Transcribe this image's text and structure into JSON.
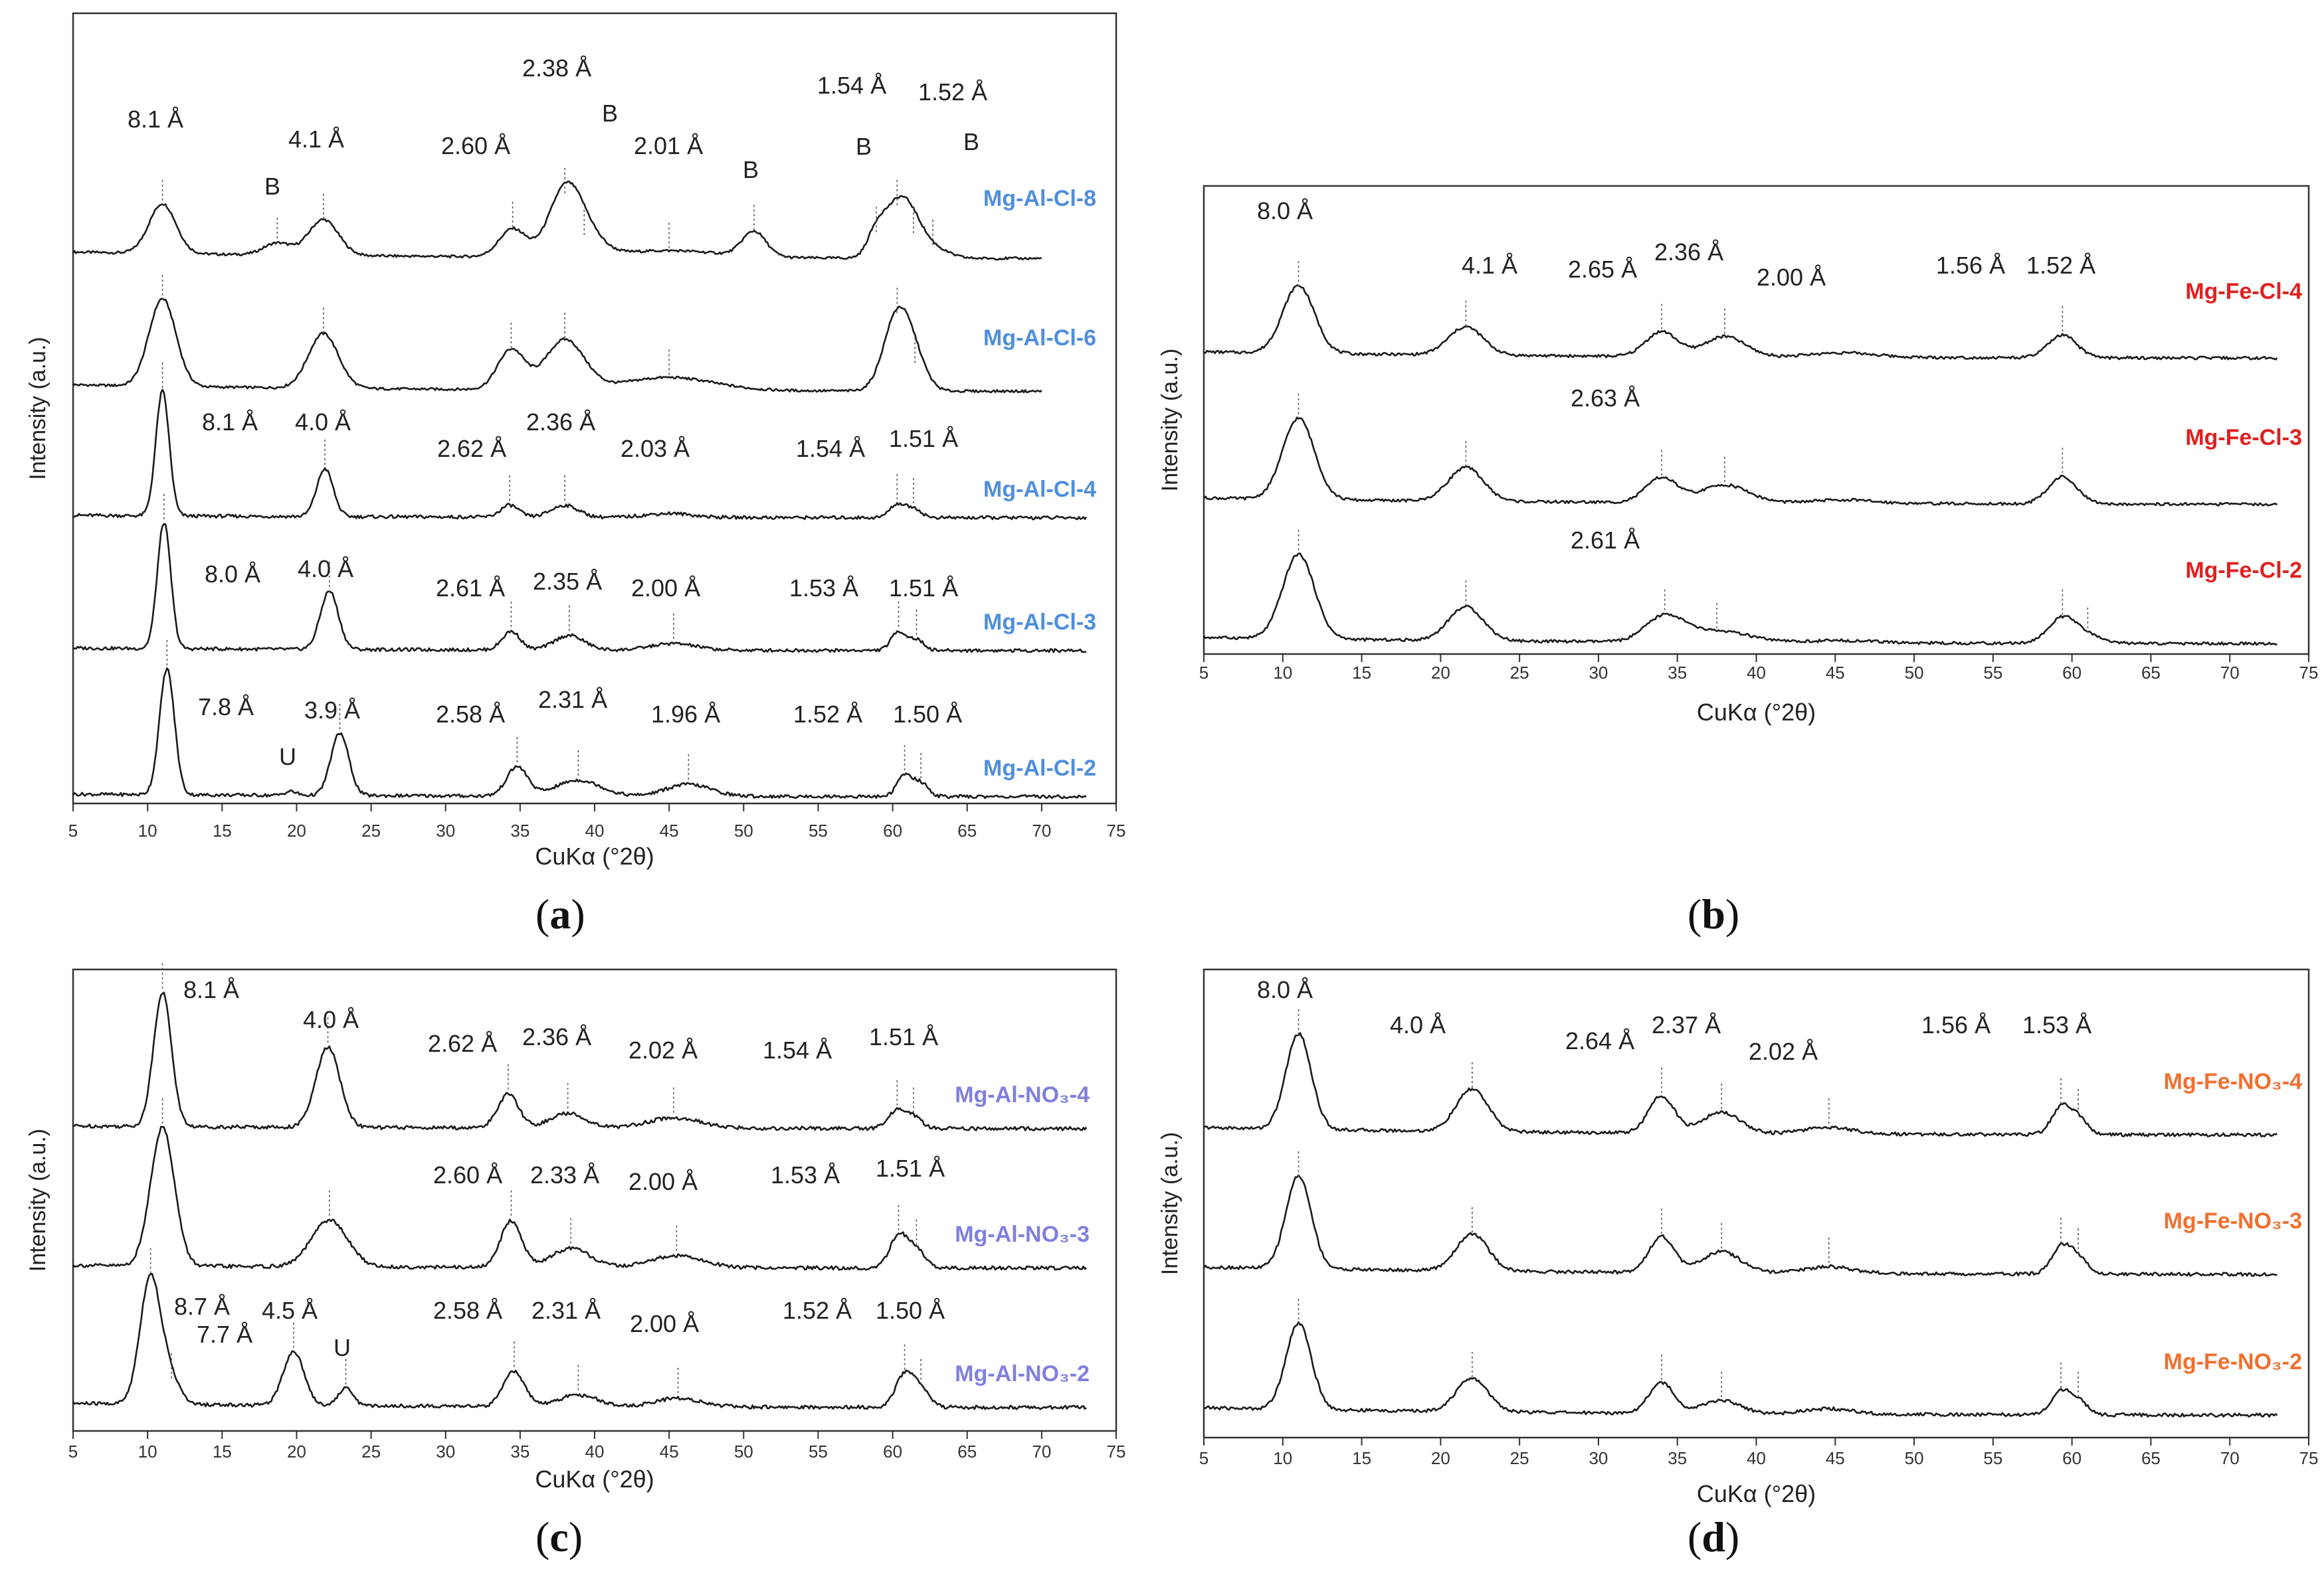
{
  "figure": {
    "panels": [
      {
        "id": "a",
        "label": "a"
      },
      {
        "id": "b",
        "label": "b"
      },
      {
        "id": "c",
        "label": "c"
      },
      {
        "id": "d",
        "label": "d"
      }
    ]
  },
  "chart_data": [
    {
      "id": "a",
      "type": "line",
      "title": "",
      "xlabel": "CuKα (°2θ)",
      "ylabel": "Intensity (a.u.)",
      "xlim": [
        5,
        75
      ],
      "xticks": [
        5,
        10,
        15,
        20,
        25,
        30,
        35,
        40,
        45,
        50,
        55,
        60,
        65,
        70,
        75
      ],
      "label_color": "#4f8fdc",
      "series": [
        {
          "name": "Mg-Al-Cl-8",
          "baseline": 0.07,
          "end": 70,
          "peaks": [
            [
              11,
              0.5,
              0.9
            ],
            [
              18.7,
              0.12,
              0.9
            ],
            [
              21.8,
              0.36,
              1.0
            ],
            [
              34.5,
              0.28,
              0.9
            ],
            [
              38.0,
              0.62,
              1.1
            ],
            [
              39.3,
              0.2,
              1.2
            ],
            [
              45,
              0.07,
              3.5
            ],
            [
              50.7,
              0.25,
              0.8
            ],
            [
              58.9,
              0.23,
              0.6
            ],
            [
              60.3,
              0.5,
              0.9
            ],
            [
              61.4,
              0.22,
              0.8
            ],
            [
              62.7,
              0.1,
              1.0
            ]
          ]
        },
        {
          "name": "Mg-Al-Cl-6",
          "baseline": 0.07,
          "end": 70,
          "peaks": [
            [
              11,
              0.88,
              0.9
            ],
            [
              21.8,
              0.55,
              1.0
            ],
            [
              34.4,
              0.4,
              0.9
            ],
            [
              38.0,
              0.5,
              1.3
            ],
            [
              45,
              0.13,
              3.0
            ],
            [
              60.3,
              0.75,
              0.9
            ],
            [
              61.5,
              0.25,
              0.8
            ]
          ]
        },
        {
          "name": "Mg-Al-Cl-4",
          "baseline": 0.02,
          "end": 73,
          "peaks": [
            [
              11,
              0.94,
              0.45
            ],
            [
              21.9,
              0.36,
              0.55
            ],
            [
              34.3,
              0.09,
              0.6
            ],
            [
              38.0,
              0.09,
              0.9
            ],
            [
              45,
              0.03,
              1.5
            ],
            [
              60.3,
              0.1,
              0.5
            ],
            [
              61.4,
              0.07,
              0.5
            ]
          ]
        },
        {
          "name": "Mg-Al-Cl-3",
          "baseline": 0.02,
          "end": 73,
          "peaks": [
            [
              11.1,
              0.95,
              0.45
            ],
            [
              22.2,
              0.44,
              0.6
            ],
            [
              34.4,
              0.14,
              0.6
            ],
            [
              38.3,
              0.11,
              1.0
            ],
            [
              45.3,
              0.05,
              1.5
            ],
            [
              60.4,
              0.14,
              0.5
            ],
            [
              61.6,
              0.08,
              0.5
            ]
          ]
        },
        {
          "name": "Mg-Al-Cl-2",
          "baseline": 0.02,
          "end": 73,
          "peaks": [
            [
              11.3,
              0.95,
              0.5
            ],
            [
              19.6,
              0.03,
              0.4
            ],
            [
              22.9,
              0.47,
              0.6
            ],
            [
              34.8,
              0.22,
              0.7
            ],
            [
              38.9,
              0.12,
              1.5
            ],
            [
              46.3,
              0.09,
              1.5
            ],
            [
              60.8,
              0.16,
              0.5
            ],
            [
              61.9,
              0.1,
              0.5
            ]
          ]
        }
      ],
      "annotations": [
        "8.1 Å",
        "B",
        "4.1 Å",
        "2.60 Å",
        "2.38 Å",
        "B",
        "2.01 Å",
        "B",
        "B",
        "1.54 Å",
        "1.52 Å",
        "B",
        "8.1 Å",
        "4.0 Å",
        "2.62 Å",
        "2.36 Å",
        "2.03 Å",
        "1.54 Å",
        "1.51 Å",
        "8.0 Å",
        "4.0 Å",
        "2.61 Å",
        "2.35 Å",
        "2.00 Å",
        "1.53 Å",
        "1.51 Å",
        "7.8 Å",
        "U",
        "3.9 Å",
        "2.58 Å",
        "2.31 Å",
        "1.96 Å",
        "1.52 Å",
        "1.50 Å"
      ]
    },
    {
      "id": "b",
      "type": "line",
      "title": "",
      "xlabel": "CuKα (°2θ)",
      "ylabel": "Intensity (a.u.)",
      "xlim": [
        5,
        75
      ],
      "xticks": [
        5,
        10,
        15,
        20,
        25,
        30,
        35,
        40,
        45,
        50,
        55,
        60,
        65,
        70,
        75
      ],
      "label_color": "#e02020",
      "series": [
        {
          "name": "Mg-Fe-Cl-4",
          "baseline": 0.06,
          "end": 73,
          "peaks": [
            [
              11,
              0.6,
              1.0
            ],
            [
              21.6,
              0.25,
              1.1
            ],
            [
              34,
              0.22,
              1.0
            ],
            [
              38,
              0.18,
              1.3
            ],
            [
              45.5,
              0.04,
              2.0
            ],
            [
              59.4,
              0.2,
              0.9
            ]
          ]
        },
        {
          "name": "Mg-Fe-Cl-3",
          "baseline": 0.06,
          "end": 73,
          "peaks": [
            [
              11,
              0.72,
              1.0
            ],
            [
              21.6,
              0.3,
              1.1
            ],
            [
              34,
              0.22,
              1.0
            ],
            [
              38,
              0.16,
              1.5
            ],
            [
              45.5,
              0.03,
              2.0
            ],
            [
              59.4,
              0.24,
              0.9
            ]
          ]
        },
        {
          "name": "Mg-Fe-Cl-2",
          "baseline": 0.06,
          "end": 73,
          "peaks": [
            [
              11,
              0.75,
              1.0
            ],
            [
              21.6,
              0.3,
              1.1
            ],
            [
              34.2,
              0.22,
              1.2
            ],
            [
              37.5,
              0.1,
              2.0
            ],
            [
              45.5,
              0.02,
              2.0
            ],
            [
              59.4,
              0.22,
              0.9
            ],
            [
              61,
              0.06,
              1.0
            ]
          ]
        }
      ],
      "annotations": [
        "8.0 Å",
        "4.1 Å",
        "2.65 Å",
        "2.36 Å",
        "2.00 Å",
        "1.56 Å",
        "1.52 Å",
        "2.63 Å",
        "2.61 Å"
      ]
    },
    {
      "id": "c",
      "type": "line",
      "title": "",
      "xlabel": "CuKα (°2θ)",
      "ylabel": "Intensity (a.u.)",
      "xlim": [
        5,
        75
      ],
      "xticks": [
        5,
        10,
        15,
        20,
        25,
        30,
        35,
        40,
        45,
        50,
        55,
        60,
        65,
        70,
        75
      ],
      "label_color": "#8080e0",
      "series": [
        {
          "name": "Mg-Al-NO₃-4",
          "baseline": 0.02,
          "end": 73,
          "peaks": [
            [
              11,
              0.92,
              0.6
            ],
            [
              22.1,
              0.55,
              0.8
            ],
            [
              34.2,
              0.23,
              0.7
            ],
            [
              38.2,
              0.1,
              1.2
            ],
            [
              45.3,
              0.07,
              1.8
            ],
            [
              60.3,
              0.12,
              0.6
            ],
            [
              61.4,
              0.07,
              0.6
            ]
          ]
        },
        {
          "name": "Mg-Al-NO₃-3",
          "baseline": 0.02,
          "end": 73,
          "peaks": [
            [
              11,
              0.95,
              0.8
            ],
            [
              22.2,
              0.32,
              1.2
            ],
            [
              34.4,
              0.32,
              0.7
            ],
            [
              38.4,
              0.13,
              1.3
            ],
            [
              45.5,
              0.08,
              1.8
            ],
            [
              60.4,
              0.22,
              0.6
            ],
            [
              61.6,
              0.12,
              0.6
            ]
          ]
        },
        {
          "name": "Mg-Al-NO₃-2",
          "baseline": 0.03,
          "end": 73,
          "peaks": [
            [
              10.2,
              0.88,
              0.7
            ],
            [
              11.6,
              0.16,
              0.6
            ],
            [
              19.8,
              0.37,
              0.7
            ],
            [
              23.3,
              0.12,
              0.5
            ],
            [
              34.6,
              0.24,
              0.7
            ],
            [
              38.9,
              0.08,
              1.3
            ],
            [
              45.6,
              0.06,
              1.5
            ],
            [
              60.8,
              0.22,
              0.6
            ],
            [
              61.9,
              0.12,
              0.6
            ]
          ]
        }
      ],
      "annotations": [
        "8.1 Å",
        "4.0 Å",
        "2.62 Å",
        "2.36 Å",
        "2.02 Å",
        "1.54 Å",
        "1.51 Å",
        "2.60 Å",
        "2.33 Å",
        "2.00 Å",
        "1.53 Å",
        "1.51 Å",
        "8.7 Å",
        "7.7 Å",
        "4.5 Å",
        "U",
        "2.58 Å",
        "2.31 Å",
        "2.00 Å",
        "1.52 Å",
        "1.50 Å"
      ]
    },
    {
      "id": "d",
      "type": "line",
      "title": "",
      "xlabel": "CuKα (°2θ)",
      "ylabel": "Intensity (a.u.)",
      "xlim": [
        5,
        75
      ],
      "xticks": [
        5,
        10,
        15,
        20,
        25,
        30,
        35,
        40,
        45,
        50,
        55,
        60,
        65,
        70,
        75
      ],
      "label_color": "#f07030",
      "series": [
        {
          "name": "Mg-Fe-NO₃-4",
          "baseline": 0.06,
          "end": 73,
          "peaks": [
            [
              11,
              0.72,
              0.8
            ],
            [
              22,
              0.32,
              1.0
            ],
            [
              34,
              0.28,
              0.8
            ],
            [
              37.8,
              0.16,
              1.2
            ],
            [
              44.6,
              0.05,
              1.5
            ],
            [
              59.3,
              0.2,
              0.6
            ],
            [
              60.4,
              0.12,
              0.6
            ]
          ]
        },
        {
          "name": "Mg-Fe-NO₃-3",
          "baseline": 0.06,
          "end": 73,
          "peaks": [
            [
              11,
              0.7,
              0.8
            ],
            [
              22,
              0.28,
              1.0
            ],
            [
              34,
              0.27,
              0.8
            ],
            [
              37.8,
              0.16,
              1.2
            ],
            [
              44.6,
              0.05,
              1.5
            ],
            [
              59.3,
              0.2,
              0.6
            ],
            [
              60.4,
              0.12,
              0.6
            ]
          ]
        },
        {
          "name": "Mg-Fe-NO₃-2",
          "baseline": 0.06,
          "end": 73,
          "peaks": [
            [
              11,
              0.65,
              0.8
            ],
            [
              22,
              0.25,
              1.0
            ],
            [
              34,
              0.23,
              0.8
            ],
            [
              37.8,
              0.1,
              1.2
            ],
            [
              44.6,
              0.04,
              1.5
            ],
            [
              59.3,
              0.17,
              0.6
            ],
            [
              60.4,
              0.1,
              0.6
            ]
          ]
        }
      ],
      "annotations": [
        "8.0 Å",
        "4.0 Å",
        "2.64 Å",
        "2.37 Å",
        "2.02 Å",
        "1.56 Å",
        "1.53 Å"
      ]
    }
  ]
}
